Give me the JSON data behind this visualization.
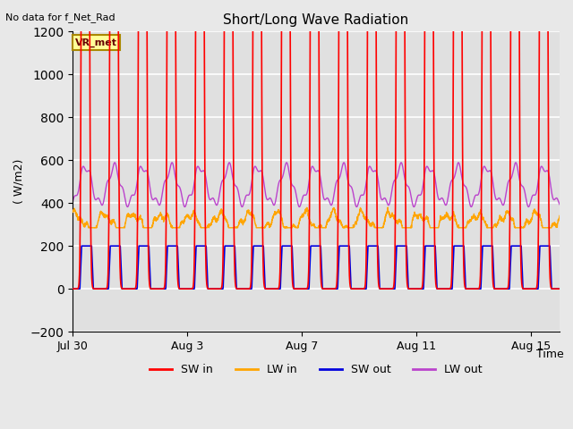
{
  "title": "Short/Long Wave Radiation",
  "top_left_text": "No data for f_Net_Rad",
  "ylabel": "( W/m2)",
  "xlabel": "Time",
  "box_label": "VR_met",
  "ylim": [
    -200,
    1200
  ],
  "yticks": [
    -200,
    0,
    200,
    400,
    600,
    800,
    1000,
    1200
  ],
  "x_tick_labels": [
    "Jul 30",
    "Aug 3",
    "Aug 7",
    "Aug 11",
    "Aug 15"
  ],
  "x_tick_positions": [
    0,
    4,
    8,
    12,
    16
  ],
  "legend": [
    {
      "label": "SW in",
      "color": "#ff0000"
    },
    {
      "label": "LW in",
      "color": "#ffa500"
    },
    {
      "label": "SW out",
      "color": "#0000dd"
    },
    {
      "label": "LW out",
      "color": "#bb44cc"
    }
  ],
  "background_color": "#e8e8e8",
  "plot_bg_color": "#e0e0e0",
  "grid_color": "#ffffff"
}
